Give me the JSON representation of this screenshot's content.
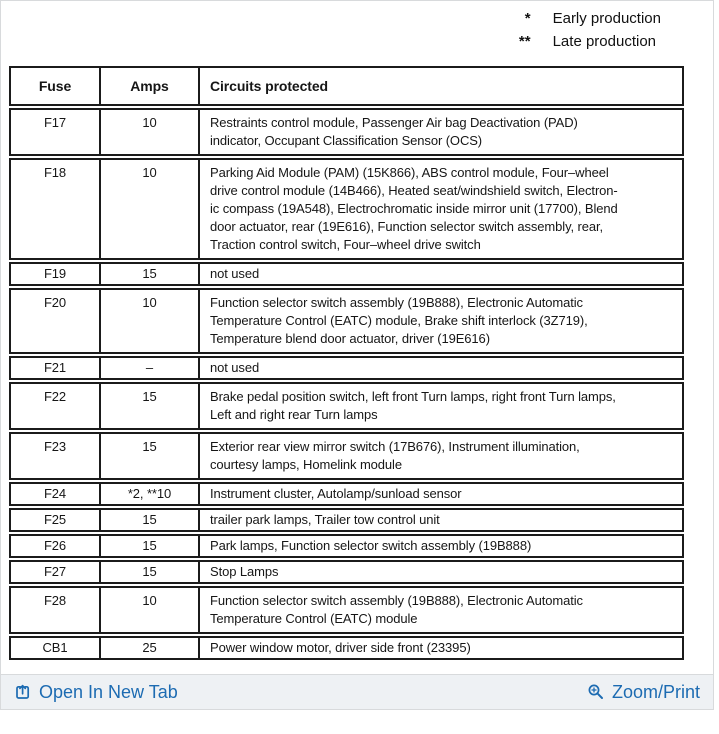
{
  "legend": {
    "items": [
      {
        "marker": "*",
        "label": "Early production"
      },
      {
        "marker": "**",
        "label": "Late production"
      }
    ]
  },
  "table": {
    "headers": [
      "Fuse",
      "Amps",
      "Circuits protected"
    ],
    "rows": [
      {
        "fuse": "F17",
        "amps": "10",
        "lines": [
          "Restraints control module, Passenger Air bag Deactivation (PAD)",
          "indicator, Occupant Classification Sensor (OCS)"
        ]
      },
      {
        "fuse": "F18",
        "amps": "10",
        "lines": [
          "Parking Aid Module (PAM) (15K866), ABS control module, Four–wheel",
          "drive control module (14B466), Heated seat/windshield switch, Electron-",
          "ic compass (19A548), Electrochromatic inside mirror unit (17700), Blend",
          "door actuator, rear (19E616), Function selector switch assembly, rear,",
          "Traction control switch, Four–wheel drive switch"
        ]
      },
      {
        "fuse": "F19",
        "amps": "15",
        "lines": [
          "not used"
        ]
      },
      {
        "fuse": "F20",
        "amps": "10",
        "lines": [
          "Function selector switch assembly (19B888), Electronic Automatic",
          "Temperature Control (EATC) module, Brake shift interlock (3Z719),",
          "Temperature blend door actuator, driver (19E616)"
        ]
      },
      {
        "fuse": "F21",
        "amps": "–",
        "lines": [
          "not used"
        ]
      },
      {
        "fuse": "F22",
        "amps": "15",
        "lines": [
          "Brake pedal position switch, left front Turn lamps, right front Turn lamps,",
          "Left and right rear Turn lamps"
        ]
      },
      {
        "fuse": "F23",
        "amps": "15",
        "lines": [
          "Exterior rear view mirror switch (17B676), Instrument illumination,",
          "courtesy lamps, Homelink module"
        ]
      },
      {
        "fuse": "F24",
        "amps": "*2, **10",
        "lines": [
          "Instrument cluster, Autolamp/sunload sensor"
        ]
      },
      {
        "fuse": "F25",
        "amps": "15",
        "lines": [
          "trailer park lamps, Trailer tow control unit"
        ]
      },
      {
        "fuse": "F26",
        "amps": "15",
        "lines": [
          "Park lamps, Function selector switch assembly (19B888)"
        ]
      },
      {
        "fuse": "F27",
        "amps": "15",
        "lines": [
          "Stop Lamps"
        ]
      },
      {
        "fuse": "F28",
        "amps": "10",
        "lines": [
          "Function selector switch assembly (19B888), Electronic Automatic",
          "Temperature Control (EATC) module"
        ]
      },
      {
        "fuse": "CB1",
        "amps": "25",
        "lines": [
          "Power window motor, driver side front (23395)"
        ]
      }
    ]
  },
  "footer": {
    "open_label": "Open In New Tab",
    "zoom_label": "Zoom/Print"
  },
  "colors": {
    "link": "#1c6bb2",
    "footer_bg": "#eef1f4",
    "table_border": "#1b1b1b"
  }
}
